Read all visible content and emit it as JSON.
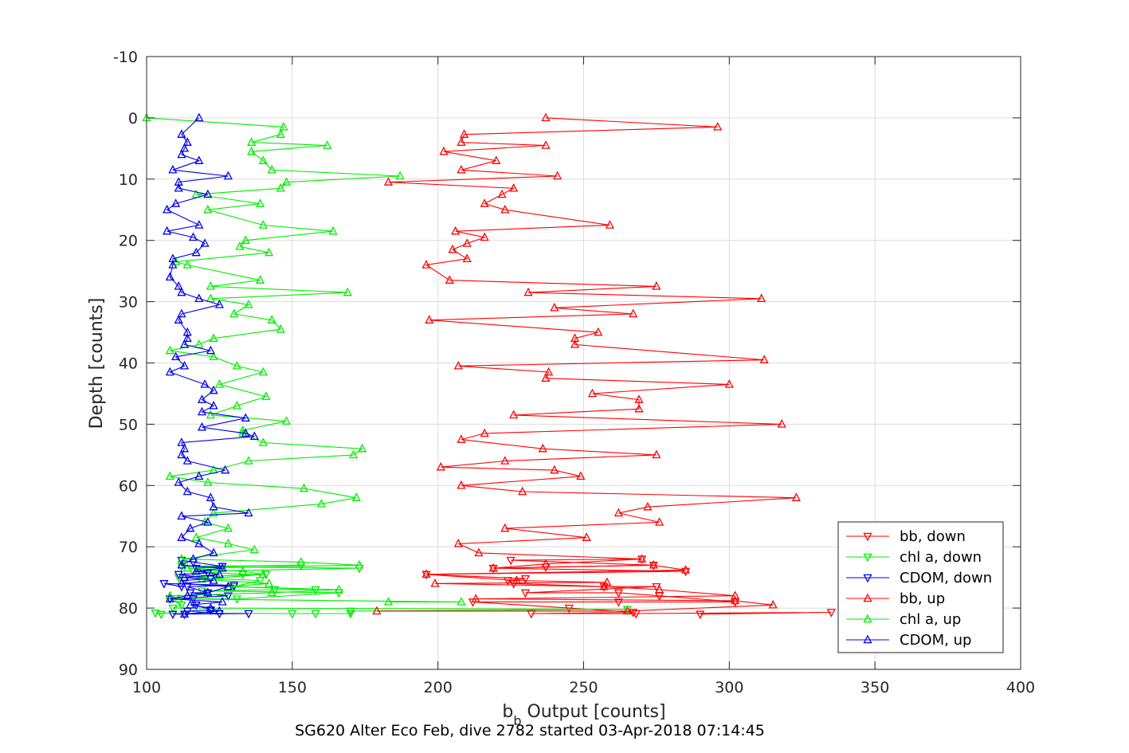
{
  "chart_data": {
    "type": "line",
    "xlabel_main": "b",
    "xlabel_sub": "b",
    "xlabel_rest": " Output [counts]",
    "ylabel": "Depth [counts]",
    "caption": "SG620 Alter Eco Feb, dive 2782 started 03-Apr-2018 07:14:45",
    "xlim": [
      100,
      400
    ],
    "ylim": [
      -10,
      90
    ],
    "y_reversed": true,
    "grid": true,
    "legend_position": "bottom-right",
    "xticks": [
      100,
      150,
      200,
      250,
      300,
      350,
      400
    ],
    "yticks": [
      -10,
      0,
      10,
      20,
      30,
      40,
      50,
      60,
      70,
      80,
      90
    ],
    "series": [
      {
        "name": "bb, down",
        "color": "#ff0000",
        "marker": "triangle-down",
        "points": [
          [
            290,
            81
          ],
          [
            335,
            80.7
          ],
          [
            268,
            80.9
          ],
          [
            232,
            80.9
          ],
          [
            267,
            80.7
          ],
          [
            245,
            80
          ],
          [
            212,
            79
          ],
          [
            262,
            79
          ],
          [
            302,
            79
          ],
          [
            276,
            78
          ],
          [
            262,
            77.5
          ],
          [
            230,
            77.5
          ],
          [
            275,
            76.5
          ],
          [
            257,
            76.5
          ],
          [
            226,
            76
          ],
          [
            224,
            75.5
          ],
          [
            230,
            75.2
          ],
          [
            196,
            74.5
          ],
          [
            285,
            74
          ],
          [
            219,
            73.5
          ],
          [
            237,
            73.3
          ],
          [
            274,
            73
          ],
          [
            225,
            72.2
          ],
          [
            270,
            72
          ]
        ]
      },
      {
        "name": "chl a, down",
        "color": "#00ee00",
        "marker": "triangle-down",
        "points": [
          [
            105,
            81
          ],
          [
            103,
            80.8
          ],
          [
            150,
            80.9
          ],
          [
            158,
            80.9
          ],
          [
            170,
            80.9
          ],
          [
            170,
            80.5
          ],
          [
            265,
            80.2
          ],
          [
            109,
            80
          ],
          [
            112,
            79.5
          ],
          [
            108,
            78.5
          ],
          [
            131,
            78.5
          ],
          [
            166,
            77.5
          ],
          [
            119,
            77.2
          ],
          [
            144,
            77
          ],
          [
            158,
            77
          ],
          [
            130,
            76.5
          ],
          [
            139,
            75.5
          ],
          [
            111,
            75
          ],
          [
            141,
            74.5
          ],
          [
            133,
            74.5
          ],
          [
            116,
            74
          ],
          [
            173,
            73.5
          ],
          [
            112,
            73.2
          ],
          [
            153,
            73
          ]
        ]
      },
      {
        "name": "CDOM, down",
        "color": "#0000ee",
        "marker": "triangle-down",
        "points": [
          [
            113,
            81
          ],
          [
            109,
            81
          ],
          [
            135,
            80.9
          ],
          [
            125,
            80.9
          ],
          [
            114,
            80.5
          ],
          [
            122,
            80.3
          ],
          [
            117,
            79.5
          ],
          [
            116,
            78.5
          ],
          [
            108,
            78.5
          ],
          [
            128,
            78
          ],
          [
            115,
            77.5
          ],
          [
            121,
            77.5
          ],
          [
            114,
            76.5
          ],
          [
            130,
            76.3
          ],
          [
            106,
            76
          ],
          [
            112,
            76.5
          ],
          [
            113,
            75.5
          ],
          [
            122,
            75.2
          ],
          [
            111,
            74.5
          ],
          [
            121,
            74.3
          ],
          [
            117,
            73.5
          ],
          [
            126,
            73.2
          ],
          [
            116,
            72.5
          ],
          [
            112,
            72.2
          ]
        ]
      },
      {
        "name": "bb, up",
        "color": "#ff0000",
        "marker": "triangle-up",
        "points": [
          [
            179,
            80.5
          ],
          [
            265,
            80.5
          ],
          [
            315,
            79.5
          ],
          [
            302,
            78.8
          ],
          [
            213,
            78.5
          ],
          [
            302,
            78
          ],
          [
            276,
            77
          ],
          [
            257,
            76.5
          ],
          [
            199,
            76
          ],
          [
            258,
            75.8
          ],
          [
            227,
            75.5
          ],
          [
            196,
            74.5
          ],
          [
            285,
            73.8
          ],
          [
            274,
            73
          ],
          [
            219,
            73.5
          ],
          [
            237,
            72.8
          ],
          [
            270,
            72
          ],
          [
            214,
            71
          ],
          [
            207,
            69.5
          ],
          [
            251,
            68.5
          ],
          [
            223,
            67
          ],
          [
            276,
            66
          ],
          [
            262,
            64.5
          ],
          [
            272,
            63.5
          ],
          [
            323,
            62
          ],
          [
            229,
            61
          ],
          [
            208,
            60
          ],
          [
            249,
            58.5
          ],
          [
            240,
            57.5
          ],
          [
            201,
            57
          ],
          [
            223,
            56
          ],
          [
            275,
            55
          ],
          [
            236,
            54
          ],
          [
            208,
            52.5
          ],
          [
            216,
            51.5
          ],
          [
            318,
            50
          ],
          [
            226,
            48.5
          ],
          [
            269,
            47.5
          ],
          [
            269,
            46
          ],
          [
            253,
            45
          ],
          [
            300,
            43.5
          ],
          [
            237,
            42.5
          ],
          [
            238,
            41.5
          ],
          [
            207,
            40.5
          ],
          [
            312,
            39.5
          ],
          [
            247,
            37
          ],
          [
            247,
            36
          ],
          [
            255,
            35
          ],
          [
            197,
            33
          ],
          [
            267,
            32
          ],
          [
            240,
            31
          ],
          [
            311,
            29.5
          ],
          [
            231,
            28.5
          ],
          [
            275,
            27.5
          ],
          [
            204,
            26.5
          ],
          [
            196,
            24
          ],
          [
            210,
            23
          ],
          [
            205,
            21.5
          ],
          [
            210,
            20.5
          ],
          [
            216,
            19.5
          ],
          [
            206,
            18.5
          ],
          [
            259,
            17.5
          ],
          [
            223,
            15
          ],
          [
            216,
            14
          ],
          [
            222,
            12.5
          ],
          [
            226,
            11.5
          ],
          [
            183,
            10.5
          ],
          [
            241,
            9.5
          ],
          [
            208,
            8.5
          ],
          [
            220,
            7
          ],
          [
            202,
            5.5
          ],
          [
            237,
            4.5
          ],
          [
            208,
            4
          ],
          [
            209,
            2.7
          ],
          [
            296,
            1.5
          ],
          [
            237,
            0
          ]
        ]
      },
      {
        "name": "chl a, up",
        "color": "#00ee00",
        "marker": "triangle-up",
        "points": [
          [
            183,
            79
          ],
          [
            208,
            79
          ],
          [
            111,
            78.5
          ],
          [
            108,
            78
          ],
          [
            143,
            77.5
          ],
          [
            166,
            77
          ],
          [
            128,
            76.5
          ],
          [
            142,
            76
          ],
          [
            119,
            75.3
          ],
          [
            140,
            74.5
          ],
          [
            133,
            74
          ],
          [
            114,
            73.5
          ],
          [
            173,
            73
          ],
          [
            153,
            72.5
          ],
          [
            112,
            72
          ],
          [
            137,
            70.5
          ],
          [
            128,
            69.5
          ],
          [
            117,
            68.5
          ],
          [
            128,
            67
          ],
          [
            120,
            66
          ],
          [
            123,
            64.5
          ],
          [
            160,
            63
          ],
          [
            172,
            62
          ],
          [
            154,
            60.5
          ],
          [
            121,
            59.5
          ],
          [
            108,
            58.5
          ],
          [
            123,
            57.5
          ],
          [
            135,
            56
          ],
          [
            171,
            55
          ],
          [
            174,
            54
          ],
          [
            140,
            53
          ],
          [
            133,
            51.5
          ],
          [
            133,
            51
          ],
          [
            148,
            49.5
          ],
          [
            122,
            48.5
          ],
          [
            131,
            47
          ],
          [
            141,
            45.5
          ],
          [
            125,
            43.5
          ],
          [
            140,
            41.5
          ],
          [
            131,
            40.5
          ],
          [
            123,
            39
          ],
          [
            108,
            38
          ],
          [
            118,
            37
          ],
          [
            123,
            36
          ],
          [
            146,
            34.5
          ],
          [
            143,
            33
          ],
          [
            130,
            32
          ],
          [
            135,
            30.5
          ],
          [
            122,
            29.5
          ],
          [
            169,
            28.5
          ],
          [
            122,
            27.5
          ],
          [
            139,
            26.5
          ],
          [
            114,
            24
          ],
          [
            110,
            23.5
          ],
          [
            142,
            22
          ],
          [
            132,
            21
          ],
          [
            134,
            20
          ],
          [
            164,
            18.5
          ],
          [
            140,
            17.5
          ],
          [
            121,
            15
          ],
          [
            139,
            14
          ],
          [
            117,
            12.5
          ],
          [
            146,
            11.5
          ],
          [
            148,
            10.5
          ],
          [
            187,
            9.5
          ],
          [
            143,
            8.5
          ],
          [
            140,
            7
          ],
          [
            136,
            5.5
          ],
          [
            162,
            4.5
          ],
          [
            136,
            4
          ],
          [
            146,
            2.7
          ],
          [
            147,
            1.5
          ],
          [
            100,
            0
          ]
        ]
      },
      {
        "name": "CDOM, up",
        "color": "#0000ee",
        "marker": "triangle-up",
        "points": [
          [
            113,
            81
          ],
          [
            125,
            80.5
          ],
          [
            122,
            80
          ],
          [
            115,
            79.5
          ],
          [
            126,
            79
          ],
          [
            108,
            78.5
          ],
          [
            114,
            78
          ],
          [
            121,
            77.5
          ],
          [
            128,
            76.5
          ],
          [
            112,
            76
          ],
          [
            123,
            75.5
          ],
          [
            113,
            75
          ],
          [
            125,
            74.5
          ],
          [
            117,
            74
          ],
          [
            126,
            73.5
          ],
          [
            112,
            73
          ],
          [
            116,
            72
          ],
          [
            123,
            71
          ],
          [
            118,
            69.5
          ],
          [
            112,
            68.5
          ],
          [
            115,
            67
          ],
          [
            121,
            66
          ],
          [
            112,
            65
          ],
          [
            135,
            64.5
          ],
          [
            123,
            63.5
          ],
          [
            122,
            62
          ],
          [
            114,
            61
          ],
          [
            111,
            59.5
          ],
          [
            118,
            58.5
          ],
          [
            127,
            57.5
          ],
          [
            114,
            56
          ],
          [
            112,
            55
          ],
          [
            113,
            54
          ],
          [
            112,
            53
          ],
          [
            137,
            52
          ],
          [
            134,
            51.5
          ],
          [
            119,
            50.5
          ],
          [
            134,
            49
          ],
          [
            119,
            48
          ],
          [
            123,
            47
          ],
          [
            119,
            46
          ],
          [
            123,
            44.5
          ],
          [
            120,
            43.5
          ],
          [
            108,
            41.5
          ],
          [
            113,
            40.5
          ],
          [
            110,
            39
          ],
          [
            122,
            38
          ],
          [
            113,
            37
          ],
          [
            114,
            36
          ],
          [
            114,
            35
          ],
          [
            111,
            33
          ],
          [
            112,
            32
          ],
          [
            125,
            30.5
          ],
          [
            118,
            29.5
          ],
          [
            112,
            28.5
          ],
          [
            111,
            27.5
          ],
          [
            108,
            26
          ],
          [
            109,
            24
          ],
          [
            109,
            23
          ],
          [
            117,
            22
          ],
          [
            120,
            20.5
          ],
          [
            116,
            19.5
          ],
          [
            107,
            18.5
          ],
          [
            118,
            17.5
          ],
          [
            107,
            15
          ],
          [
            110,
            14
          ],
          [
            121,
            12.5
          ],
          [
            111,
            11.5
          ],
          [
            111,
            10.5
          ],
          [
            128,
            9.5
          ],
          [
            109,
            8.5
          ],
          [
            118,
            7
          ],
          [
            112,
            6
          ],
          [
            113,
            5
          ],
          [
            114,
            4
          ],
          [
            112,
            2.7
          ],
          [
            118,
            0
          ]
        ]
      }
    ]
  }
}
